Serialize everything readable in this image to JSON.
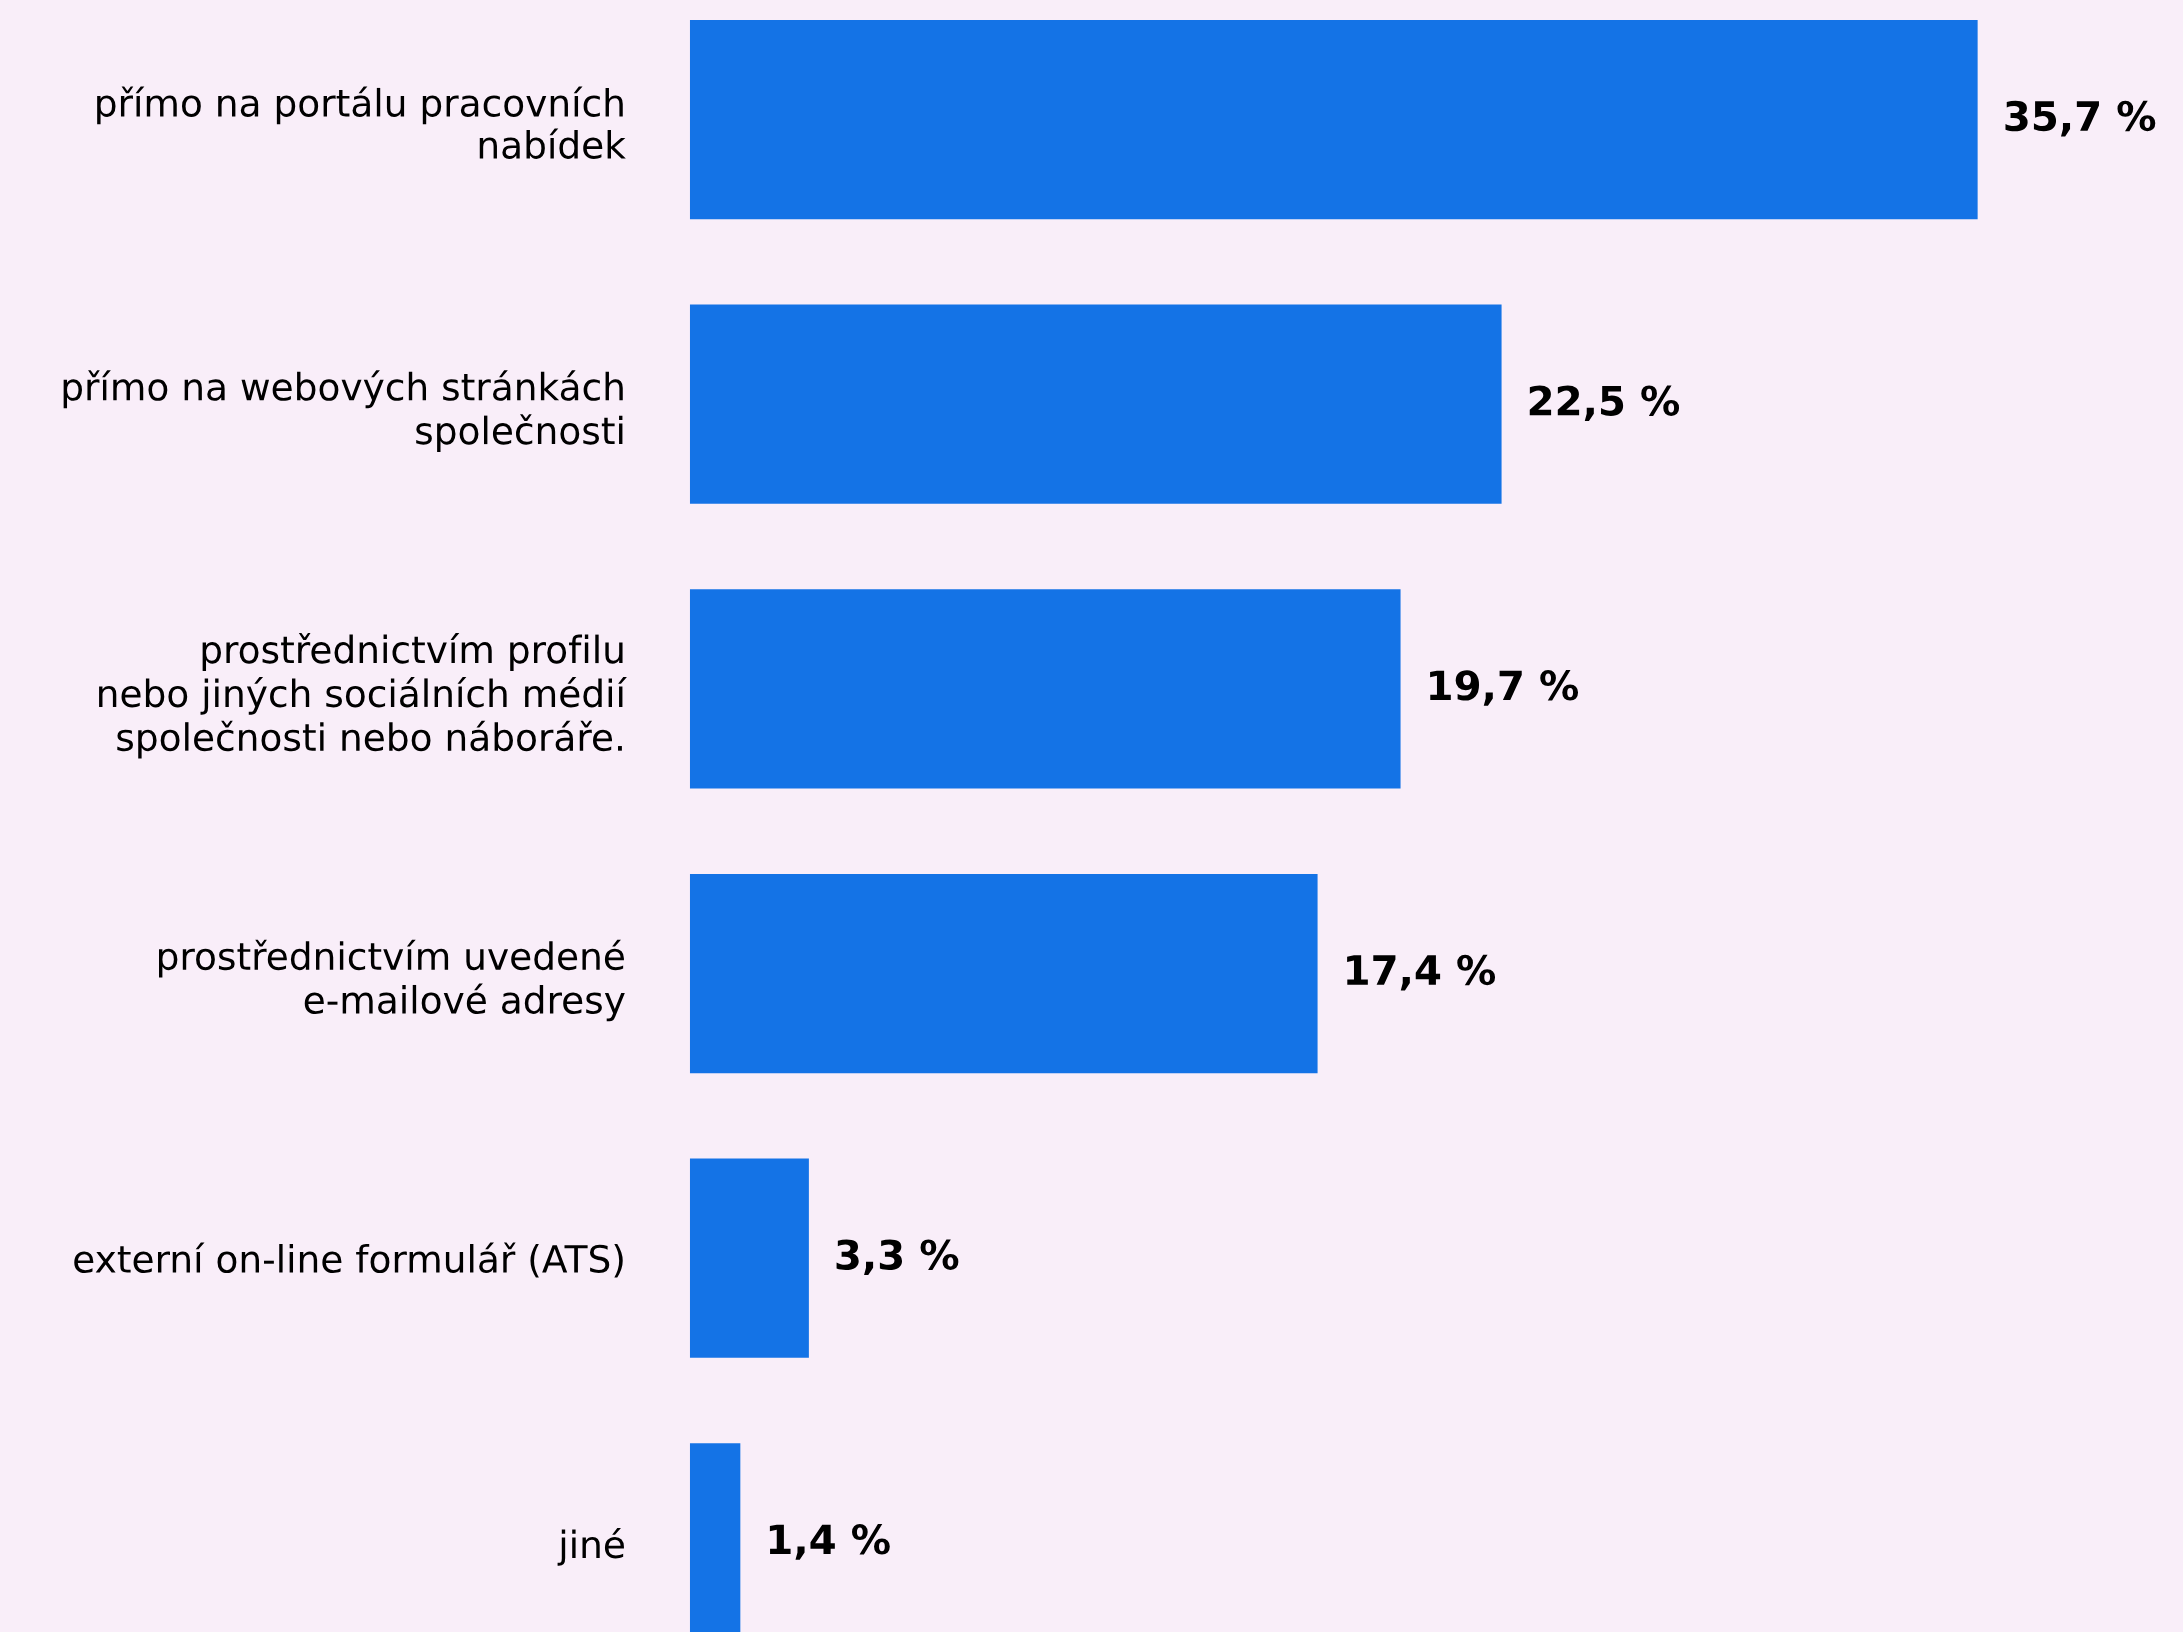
{
  "chart_data": {
    "type": "bar",
    "orientation": "horizontal",
    "categories": [
      "přímo na portálu pracovních\nnabídek",
      "přímo na webových stránkách\nspolečnosti",
      "prostřednictvím profilu\nnebo jiných sociálních médií\nspolečnosti nebo náboráře.",
      "prostřednictvím uvedené\ne-mailové adresy",
      "externí on-line formulář (ATS)",
      "jiné"
    ],
    "values": [
      35.7,
      22.5,
      19.7,
      17.4,
      3.3,
      1.4
    ],
    "value_labels": [
      "35,7 %",
      "22,5 %",
      "19,7 %",
      "17,4 %",
      "3,3 %",
      "1,4 %"
    ],
    "color": "#1473e6",
    "grid": false,
    "legend": false
  }
}
